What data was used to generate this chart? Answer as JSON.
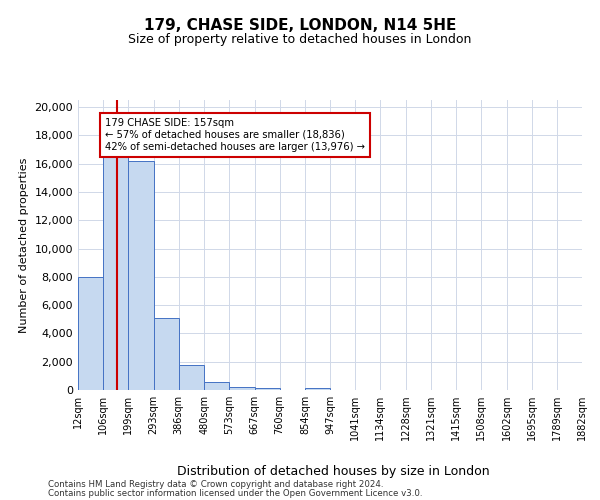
{
  "title": "179, CHASE SIDE, LONDON, N14 5HE",
  "subtitle": "Size of property relative to detached houses in London",
  "xlabel": "Distribution of detached houses by size in London",
  "ylabel": "Number of detached properties",
  "property_size": 157,
  "property_label": "179 CHASE SIDE: 157sqm",
  "pct_smaller": 57,
  "n_smaller": 18836,
  "pct_larger": 42,
  "n_larger": 13976,
  "footnote1": "Contains HM Land Registry data © Crown copyright and database right 2024.",
  "footnote2": "Contains public sector information licensed under the Open Government Licence v3.0.",
  "bar_color": "#c6d9f0",
  "bar_edge_color": "#4472c4",
  "vline_color": "#cc0000",
  "annotation_box_color": "#cc0000",
  "grid_color": "#d0d8e8",
  "background_color": "#ffffff",
  "bin_edges": [
    12,
    106,
    199,
    293,
    386,
    480,
    573,
    667,
    760,
    854,
    947,
    1041,
    1134,
    1228,
    1321,
    1415,
    1508,
    1602,
    1695,
    1789,
    1882
  ],
  "bin_labels": [
    "12sqm",
    "106sqm",
    "199sqm",
    "293sqm",
    "386sqm",
    "480sqm",
    "573sqm",
    "667sqm",
    "760sqm",
    "854sqm",
    "947sqm",
    "1041sqm",
    "1134sqm",
    "1228sqm",
    "1321sqm",
    "1415sqm",
    "1508sqm",
    "1602sqm",
    "1695sqm",
    "1789sqm",
    "1882sqm"
  ],
  "bar_heights": [
    8000,
    16500,
    16200,
    5100,
    1750,
    550,
    230,
    130,
    0,
    130,
    0,
    0,
    0,
    0,
    0,
    0,
    0,
    0,
    0,
    0
  ],
  "ylim": [
    0,
    20500
  ],
  "yticks": [
    0,
    2000,
    4000,
    6000,
    8000,
    10000,
    12000,
    14000,
    16000,
    18000,
    20000
  ]
}
